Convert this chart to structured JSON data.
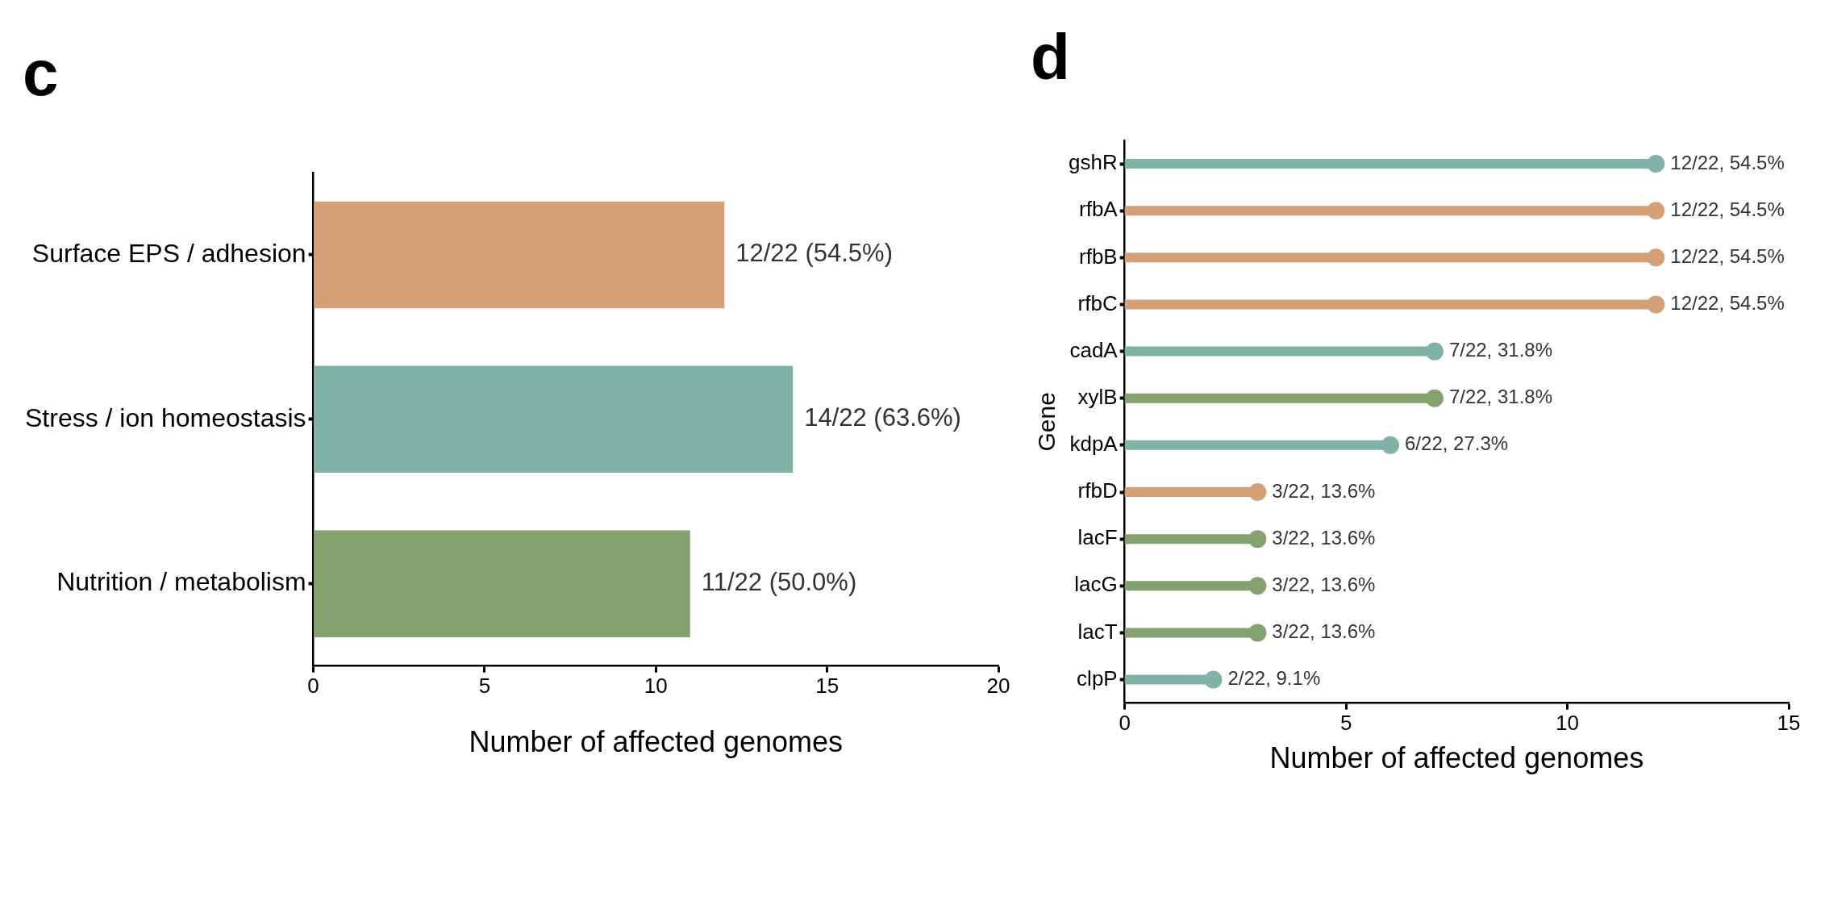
{
  "chart_data": [
    {
      "type": "bar",
      "orientation": "horizontal",
      "title": "c",
      "xlabel": "Number of affected genomes",
      "categories": [
        "Surface EPS / adhesion",
        "Stress / ion homeostasis",
        "Nutrition / metabolism"
      ],
      "values": [
        12,
        14,
        11
      ],
      "colors": [
        "#d6a077",
        "#7fb3a5",
        "#84a26e"
      ],
      "value_labels": [
        "12/22 (54.5%)",
        "14/22 (63.6%)",
        "11/22 (50.0%)"
      ],
      "xlim": [
        0,
        20
      ],
      "xticks": [
        0,
        5,
        10,
        15,
        20
      ],
      "grid": false,
      "legend": false
    },
    {
      "type": "lollipop",
      "orientation": "horizontal",
      "title": "d",
      "xlabel": "Number of affected genomes",
      "ylabel": "Gene",
      "categories": [
        "gshR",
        "rfbA",
        "rfbB",
        "rfbC",
        "cadA",
        "xylB",
        "kdpA",
        "rfbD",
        "lacF",
        "lacG",
        "lacT",
        "clpP"
      ],
      "values": [
        12,
        12,
        12,
        12,
        7,
        7,
        6,
        3,
        3,
        3,
        3,
        2
      ],
      "colors": [
        "#7fb3a5",
        "#d6a077",
        "#d6a077",
        "#d6a077",
        "#7fb3a5",
        "#84a26e",
        "#7fb3a5",
        "#d6a077",
        "#84a26e",
        "#84a26e",
        "#84a26e",
        "#7fb3a5"
      ],
      "value_labels": [
        "12/22, 54.5%",
        "12/22, 54.5%",
        "12/22, 54.5%",
        "12/22, 54.5%",
        "7/22, 31.8%",
        "7/22, 31.8%",
        "6/22, 27.3%",
        "3/22, 13.6%",
        "3/22, 13.6%",
        "3/22, 13.6%",
        "3/22, 13.6%",
        "2/22, 9.1%"
      ],
      "xlim": [
        0,
        15
      ],
      "xticks": [
        0,
        5,
        10,
        15
      ],
      "grid": false,
      "legend": false,
      "marker": "circle"
    }
  ]
}
